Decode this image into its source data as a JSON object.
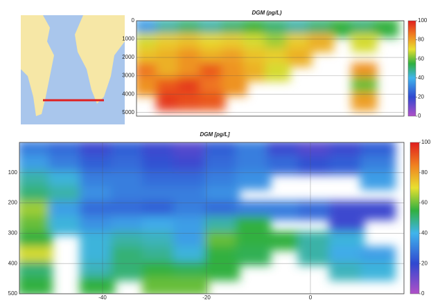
{
  "chart_data": [
    {
      "type": "contour",
      "title": "DGM (pg/L)",
      "x": [
        -53,
        -47,
        -41,
        -35,
        -29,
        -23,
        -17,
        -11,
        -5,
        1,
        7,
        13
      ],
      "y": [
        400,
        1200,
        2000,
        2800,
        3600,
        4400
      ],
      "z": [
        [
          30,
          40,
          45,
          40,
          45,
          50,
          45,
          40,
          45,
          50,
          45,
          50
        ],
        [
          65,
          70,
          72,
          68,
          70,
          65,
          60,
          70,
          75,
          null,
          65,
          null
        ],
        [
          72,
          75,
          80,
          75,
          78,
          72,
          70,
          75,
          null,
          null,
          null,
          null
        ],
        [
          85,
          75,
          80,
          90,
          80,
          75,
          65,
          null,
          null,
          null,
          80,
          null
        ],
        [
          80,
          90,
          95,
          85,
          80,
          null,
          null,
          null,
          null,
          null,
          55,
          null
        ],
        [
          null,
          95,
          92,
          90,
          null,
          null,
          null,
          null,
          null,
          null,
          78,
          null
        ]
      ],
      "xlim": [
        -56,
        18
      ],
      "ylim": [
        0,
        5200
      ],
      "yticks": [
        0,
        1000,
        2000,
        3000,
        4000,
        5000
      ],
      "colorbar_lim": [
        0,
        100
      ],
      "colorbar_ticks": [
        0,
        20,
        40,
        60,
        80,
        100
      ],
      "colormap": [
        "#b050c8",
        "#3048d0",
        "#40b4ec",
        "#30b040",
        "#e8e030",
        "#f08020",
        "#e01e1e"
      ]
    },
    {
      "type": "contour",
      "title": "DGM [pg/L]",
      "x": [
        -53,
        -47,
        -41,
        -35,
        -29,
        -23,
        -17,
        -11,
        -5,
        1,
        7,
        13
      ],
      "y": [
        25,
        75,
        125,
        175,
        225,
        275,
        325,
        375,
        425,
        475
      ],
      "z": [
        [
          25,
          22,
          15,
          20,
          15,
          12,
          20,
          25,
          15,
          12,
          15,
          20
        ],
        [
          30,
          25,
          20,
          22,
          18,
          15,
          22,
          25,
          22,
          18,
          20,
          25
        ],
        [
          40,
          35,
          25,
          25,
          22,
          22,
          25,
          28,
          null,
          null,
          null,
          30
        ],
        [
          45,
          40,
          28,
          25,
          25,
          25,
          28,
          null,
          null,
          null,
          null,
          null
        ],
        [
          60,
          30,
          22,
          22,
          20,
          25,
          22,
          25,
          25,
          22,
          15,
          15
        ],
        [
          55,
          35,
          28,
          30,
          32,
          30,
          40,
          50,
          null,
          null,
          15,
          null
        ],
        [
          50,
          null,
          35,
          40,
          38,
          30,
          55,
          50,
          50,
          40,
          35,
          null
        ],
        [
          65,
          null,
          35,
          45,
          42,
          35,
          50,
          48,
          null,
          40,
          32,
          30
        ],
        [
          45,
          null,
          38,
          45,
          50,
          48,
          50,
          null,
          null,
          null,
          38,
          35
        ],
        [
          50,
          null,
          50,
          null,
          55,
          55,
          null,
          null,
          null,
          null,
          null,
          null
        ]
      ],
      "xlim": [
        -56,
        18
      ],
      "ylim": [
        0,
        500
      ],
      "xticks": [
        -40,
        -20,
        0
      ],
      "yticks": [
        100,
        200,
        300,
        400,
        500
      ],
      "colorbar_lim": [
        0,
        100
      ],
      "colorbar_ticks": [
        0,
        20,
        40,
        60,
        80,
        100
      ],
      "colormap": [
        "#b050c8",
        "#3048d0",
        "#40b4ec",
        "#30b040",
        "#e8e030",
        "#f08020",
        "#e01e1e"
      ]
    }
  ]
}
